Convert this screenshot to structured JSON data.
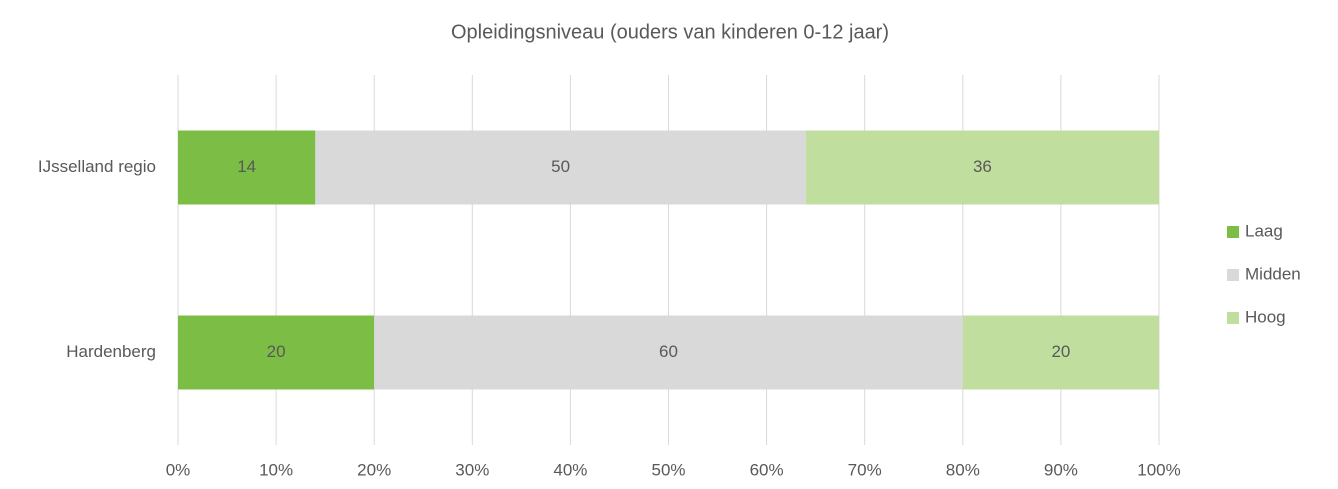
{
  "chart_data": {
    "type": "stacked_barh",
    "title": "Opleidingsniveau (ouders van kinderen 0-12 jaar)",
    "categories": [
      "IJsselland regio",
      "Hardenberg"
    ],
    "series": [
      {
        "name": "Laag",
        "color": "#7cbd45",
        "values": [
          14,
          20
        ]
      },
      {
        "name": "Midden",
        "color": "#d9d9d9",
        "values": [
          50,
          60
        ]
      },
      {
        "name": "Hoog",
        "color": "#c0df9f",
        "values": [
          36,
          20
        ]
      }
    ],
    "xlim": [
      0,
      100
    ],
    "xticks": [
      {
        "value": 0,
        "label": "0%"
      },
      {
        "value": 10,
        "label": "10%"
      },
      {
        "value": 20,
        "label": "20%"
      },
      {
        "value": 30,
        "label": "30%"
      },
      {
        "value": 40,
        "label": "40%"
      },
      {
        "value": 50,
        "label": "50%"
      },
      {
        "value": 60,
        "label": "60%"
      },
      {
        "value": 70,
        "label": "70%"
      },
      {
        "value": 80,
        "label": "80%"
      },
      {
        "value": 90,
        "label": "90%"
      },
      {
        "value": 100,
        "label": "100%"
      }
    ],
    "grid": true,
    "legend": "right"
  }
}
